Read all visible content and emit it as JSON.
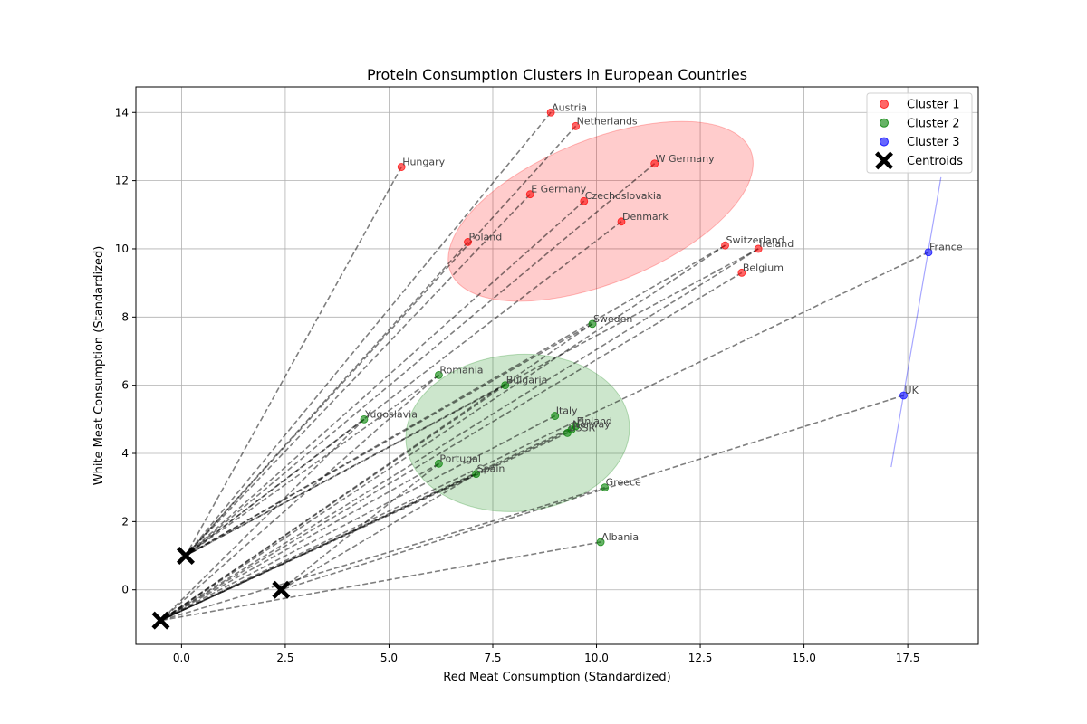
{
  "chart_data": {
    "type": "scatter",
    "title": "Protein Consumption Clusters in European Countries",
    "xlabel": "Red Meat Consumption (Standardized)",
    "ylabel": "White Meat Consumption (Standardized)",
    "xlim": [
      -1.1,
      19.2
    ],
    "ylim": [
      -1.6,
      14.75
    ],
    "xticks": [
      0.0,
      2.5,
      5.0,
      7.5,
      10.0,
      12.5,
      15.0,
      17.5
    ],
    "xtick_labels": [
      "0.0",
      "2.5",
      "5.0",
      "7.5",
      "10.0",
      "12.5",
      "15.0",
      "17.5"
    ],
    "yticks": [
      0,
      2,
      4,
      6,
      8,
      10,
      12,
      14
    ],
    "ytick_labels": [
      "0",
      "2",
      "4",
      "6",
      "8",
      "10",
      "12",
      "14"
    ],
    "grid": true,
    "legend_position": "top-right",
    "series": [
      {
        "name": "Cluster 1",
        "color": "#ff0000",
        "points": [
          {
            "label": "Austria",
            "x": 8.9,
            "y": 14.0
          },
          {
            "label": "Netherlands",
            "x": 9.5,
            "y": 13.6
          },
          {
            "label": "Hungary",
            "x": 5.3,
            "y": 12.4
          },
          {
            "label": "W Germany",
            "x": 11.4,
            "y": 12.5
          },
          {
            "label": "E Germany",
            "x": 8.4,
            "y": 11.6
          },
          {
            "label": "Czechoslovakia",
            "x": 9.7,
            "y": 11.4
          },
          {
            "label": "Denmark",
            "x": 10.6,
            "y": 10.8
          },
          {
            "label": "Poland",
            "x": 6.9,
            "y": 10.2
          },
          {
            "label": "Switzerland",
            "x": 13.1,
            "y": 10.1
          },
          {
            "label": "Ireland",
            "x": 13.9,
            "y": 10.0
          },
          {
            "label": "Belgium",
            "x": 13.5,
            "y": 9.3
          }
        ]
      },
      {
        "name": "Cluster 2",
        "color": "#008000",
        "points": [
          {
            "label": "Sweden",
            "x": 9.9,
            "y": 7.8
          },
          {
            "label": "Romania",
            "x": 6.2,
            "y": 6.3
          },
          {
            "label": "Bulgaria",
            "x": 7.8,
            "y": 6.0
          },
          {
            "label": "Yugoslavia",
            "x": 4.4,
            "y": 5.0
          },
          {
            "label": "Italy",
            "x": 9.0,
            "y": 5.1
          },
          {
            "label": "Finland",
            "x": 9.5,
            "y": 4.8
          },
          {
            "label": "Norway",
            "x": 9.4,
            "y": 4.7
          },
          {
            "label": "USSR",
            "x": 9.3,
            "y": 4.6
          },
          {
            "label": "Portugal",
            "x": 6.2,
            "y": 3.7
          },
          {
            "label": "Spain",
            "x": 7.1,
            "y": 3.4
          },
          {
            "label": "Greece",
            "x": 10.2,
            "y": 3.0
          },
          {
            "label": "Albania",
            "x": 10.1,
            "y": 1.4
          }
        ]
      },
      {
        "name": "Cluster 3",
        "color": "#0000ff",
        "points": [
          {
            "label": "France",
            "x": 18.0,
            "y": 9.9
          },
          {
            "label": "UK",
            "x": 17.4,
            "y": 5.7
          }
        ]
      }
    ],
    "centroids": {
      "name": "Centroids",
      "points": [
        {
          "x": 0.1,
          "y": 1.0
        },
        {
          "x": 2.4,
          "y": 0.0
        },
        {
          "x": -0.5,
          "y": -0.9
        }
      ]
    },
    "ellipses": [
      {
        "color": "#ff0000",
        "cx": 10.1,
        "cy": 11.1,
        "rx": 3.9,
        "ry": 2.1,
        "angle_deg": 22
      },
      {
        "color": "#008000",
        "cx": 8.1,
        "cy": 4.6,
        "rx": 2.7,
        "ry": 2.3,
        "angle_deg": 5
      },
      {
        "color": "#0000ff",
        "x1": 17.1,
        "y1": 3.6,
        "x2": 18.3,
        "y2": 12.1
      }
    ],
    "connections": [
      [
        "Austria",
        0
      ],
      [
        "Netherlands",
        0
      ],
      [
        "Hungary",
        0
      ],
      [
        "W Germany",
        0
      ],
      [
        "E Germany",
        0
      ],
      [
        "Czechoslovakia",
        0
      ],
      [
        "Poland",
        0
      ],
      [
        "Denmark",
        0
      ],
      [
        "Sweden",
        0
      ],
      [
        "Romania",
        0
      ],
      [
        "Bulgaria",
        0
      ],
      [
        "Yugoslavia",
        0
      ],
      [
        "Switzerland",
        0
      ],
      [
        "Ireland",
        0
      ],
      [
        "Switzerland",
        2
      ],
      [
        "Ireland",
        2
      ],
      [
        "Belgium",
        2
      ],
      [
        "Sweden",
        2
      ],
      [
        "Romania",
        2
      ],
      [
        "Bulgaria",
        2
      ],
      [
        "Yugoslavia",
        2
      ],
      [
        "Italy",
        2
      ],
      [
        "Finland",
        2
      ],
      [
        "Norway",
        2
      ],
      [
        "USSR",
        2
      ],
      [
        "Portugal",
        2
      ],
      [
        "Spain",
        2
      ],
      [
        "Greece",
        2
      ],
      [
        "Albania",
        2
      ],
      [
        "France",
        2
      ],
      [
        "UK",
        1
      ],
      [
        "Portugal",
        1
      ],
      [
        "Spain",
        1
      ]
    ]
  }
}
